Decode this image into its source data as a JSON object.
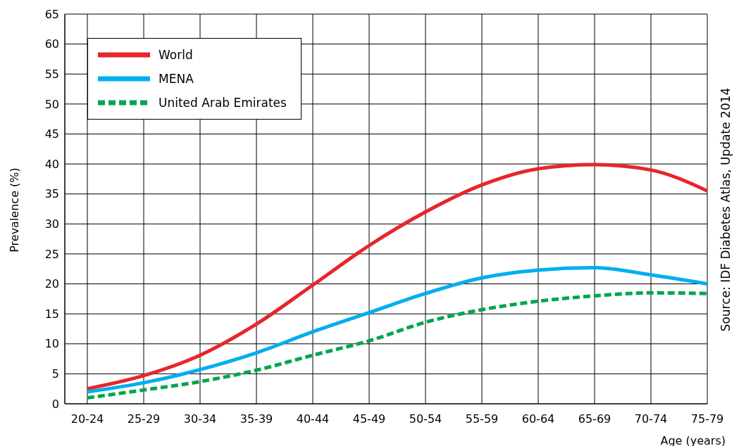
{
  "chart_data": {
    "type": "line",
    "ylabel": "Prevalence (%)",
    "xlabel": "Age (years)",
    "categories": [
      "20-24",
      "25-29",
      "30-34",
      "35-39",
      "40-44",
      "45-49",
      "50-54",
      "55-59",
      "60-64",
      "65-69",
      "70-74",
      "75-79"
    ],
    "series": [
      {
        "name": "World",
        "color": "#e8262b",
        "line_style": "solid",
        "values": [
          2.5,
          4.7,
          8.1,
          13.3,
          19.8,
          26.4,
          32,
          36.5,
          39.2,
          39.9,
          39,
          35.5
        ]
      },
      {
        "name": "MENA",
        "color": "#00aeef",
        "line_style": "solid",
        "values": [
          2,
          3.5,
          5.7,
          8.5,
          12,
          15.2,
          18.4,
          21,
          22.3,
          22.7,
          21.5,
          20
        ]
      },
      {
        "name": "United Arab Emirates",
        "color": "#00a54f",
        "line_style": "dashed",
        "values": [
          1,
          2.3,
          3.7,
          5.6,
          8.1,
          10.5,
          13.6,
          15.7,
          17.1,
          18,
          18.5,
          18.4
        ]
      }
    ],
    "ylim": [
      0,
      65
    ],
    "yticks": [
      0,
      5,
      10,
      15,
      20,
      25,
      30,
      35,
      40,
      45,
      50,
      55,
      60,
      65
    ],
    "grid": true,
    "legend": "top left",
    "marker": "none",
    "annotations": [
      "Source: IDF Diabetes Atlas, Update 2014"
    ]
  }
}
